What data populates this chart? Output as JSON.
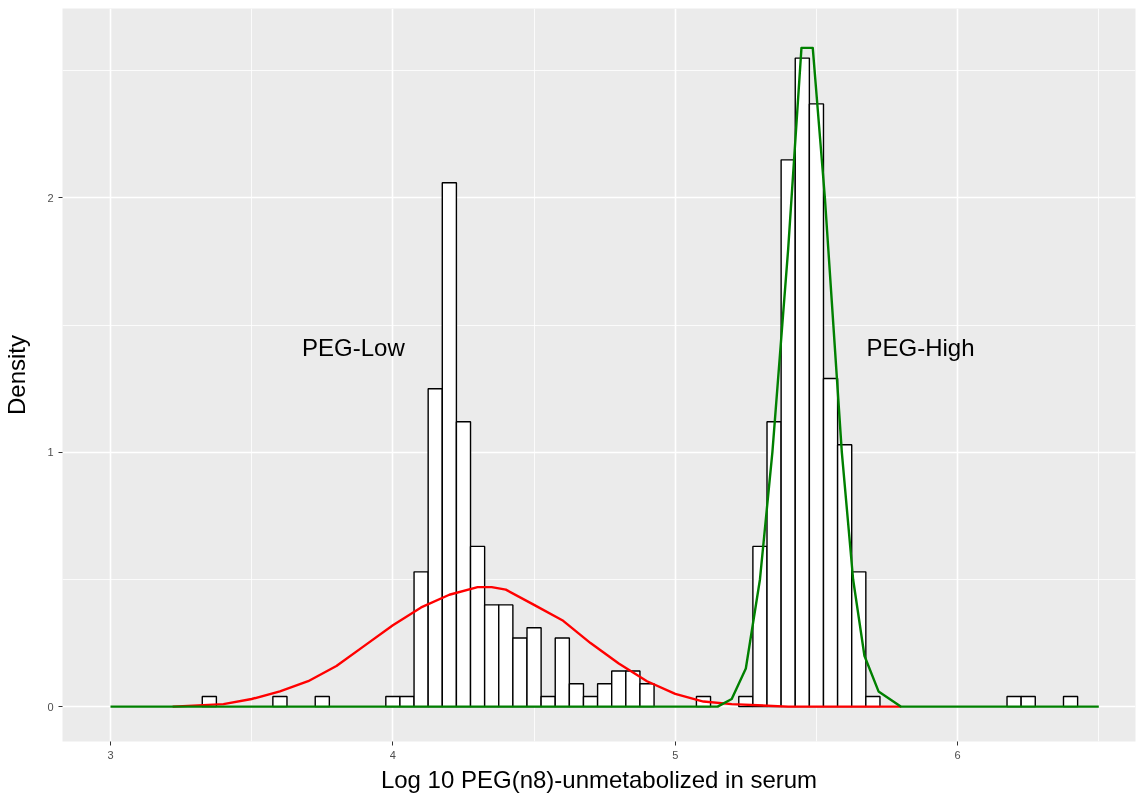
{
  "chart_data": {
    "type": "histogram",
    "xlabel": "Log 10 PEG(n8)-unmetabolized in serum",
    "ylabel": "Density",
    "annotations": [
      "PEG-Low",
      "PEG-High"
    ],
    "series": [
      {
        "color": "#ffffff",
        "bins": [
          3.325,
          3.375,
          3.425,
          3.475,
          3.525,
          3.575,
          3.625,
          3.675,
          3.725,
          3.775,
          3.825,
          3.875,
          3.925,
          3.975,
          4.025,
          4.075,
          4.125,
          4.175,
          4.225,
          4.275,
          4.325,
          4.375,
          4.425,
          4.475,
          4.525,
          4.575,
          4.625,
          4.675,
          4.725,
          4.775,
          4.825,
          4.875,
          4.925,
          4.975,
          5.025,
          5.075,
          5.125,
          5.175,
          5.225,
          5.275,
          5.325,
          5.375,
          5.425,
          5.475,
          5.525,
          5.575,
          5.625,
          5.675,
          5.725,
          5.775,
          5.825,
          5.875,
          5.925,
          5.975,
          6.025,
          6.075,
          6.125,
          6.175,
          6.225,
          6.275,
          6.325,
          6.375,
          6.425
        ],
        "values": [
          0.04,
          0,
          0,
          0,
          0,
          0.04,
          0,
          0,
          0.04,
          0,
          0,
          0,
          0,
          0.04,
          0.04,
          0.53,
          1.25,
          2.06,
          1.12,
          0.63,
          0.4,
          0.4,
          0.27,
          0.31,
          0.04,
          0.27,
          0.09,
          0.04,
          0.09,
          0.14,
          0.14,
          0.09,
          0,
          0,
          0,
          0.04,
          0,
          0,
          0.04,
          0.63,
          1.12,
          2.15,
          2.55,
          2.37,
          1.29,
          1.03,
          0.53,
          0.04,
          0,
          0,
          0,
          0,
          0,
          0,
          0,
          0,
          0,
          0.04,
          0.04,
          0,
          0,
          0.04
        ]
      },
      {
        "type": "line",
        "color": "#ff0000",
        "x": [
          3.22,
          3.4,
          3.5,
          3.6,
          3.7,
          3.8,
          3.9,
          4.0,
          4.1,
          4.2,
          4.3,
          4.35,
          4.4,
          4.5,
          4.6,
          4.7,
          4.8,
          4.9,
          5.0,
          5.1,
          5.2,
          5.4,
          5.8
        ],
        "values": [
          0,
          0.01,
          0.03,
          0.06,
          0.1,
          0.16,
          0.24,
          0.32,
          0.39,
          0.44,
          0.47,
          0.47,
          0.46,
          0.4,
          0.34,
          0.25,
          0.17,
          0.1,
          0.05,
          0.02,
          0.01,
          0,
          0
        ]
      },
      {
        "type": "line",
        "color": "#008000",
        "x": [
          3.0,
          5.15,
          5.2,
          5.25,
          5.3,
          5.344,
          5.4,
          5.447,
          5.487,
          5.53,
          5.59,
          5.63,
          5.67,
          5.72,
          5.8,
          6.5
        ],
        "values": [
          0,
          0,
          0.03,
          0.15,
          0.5,
          1.0,
          1.8,
          2.59,
          2.59,
          2.0,
          1.0,
          0.5,
          0.2,
          0.06,
          0,
          0
        ]
      }
    ],
    "xlim": [
      2.83,
      6.63
    ],
    "ylim": [
      -0.137,
      2.745
    ],
    "xticks": [
      3,
      4,
      5,
      6
    ],
    "yticks": [
      0,
      1,
      2
    ],
    "grid": true
  }
}
